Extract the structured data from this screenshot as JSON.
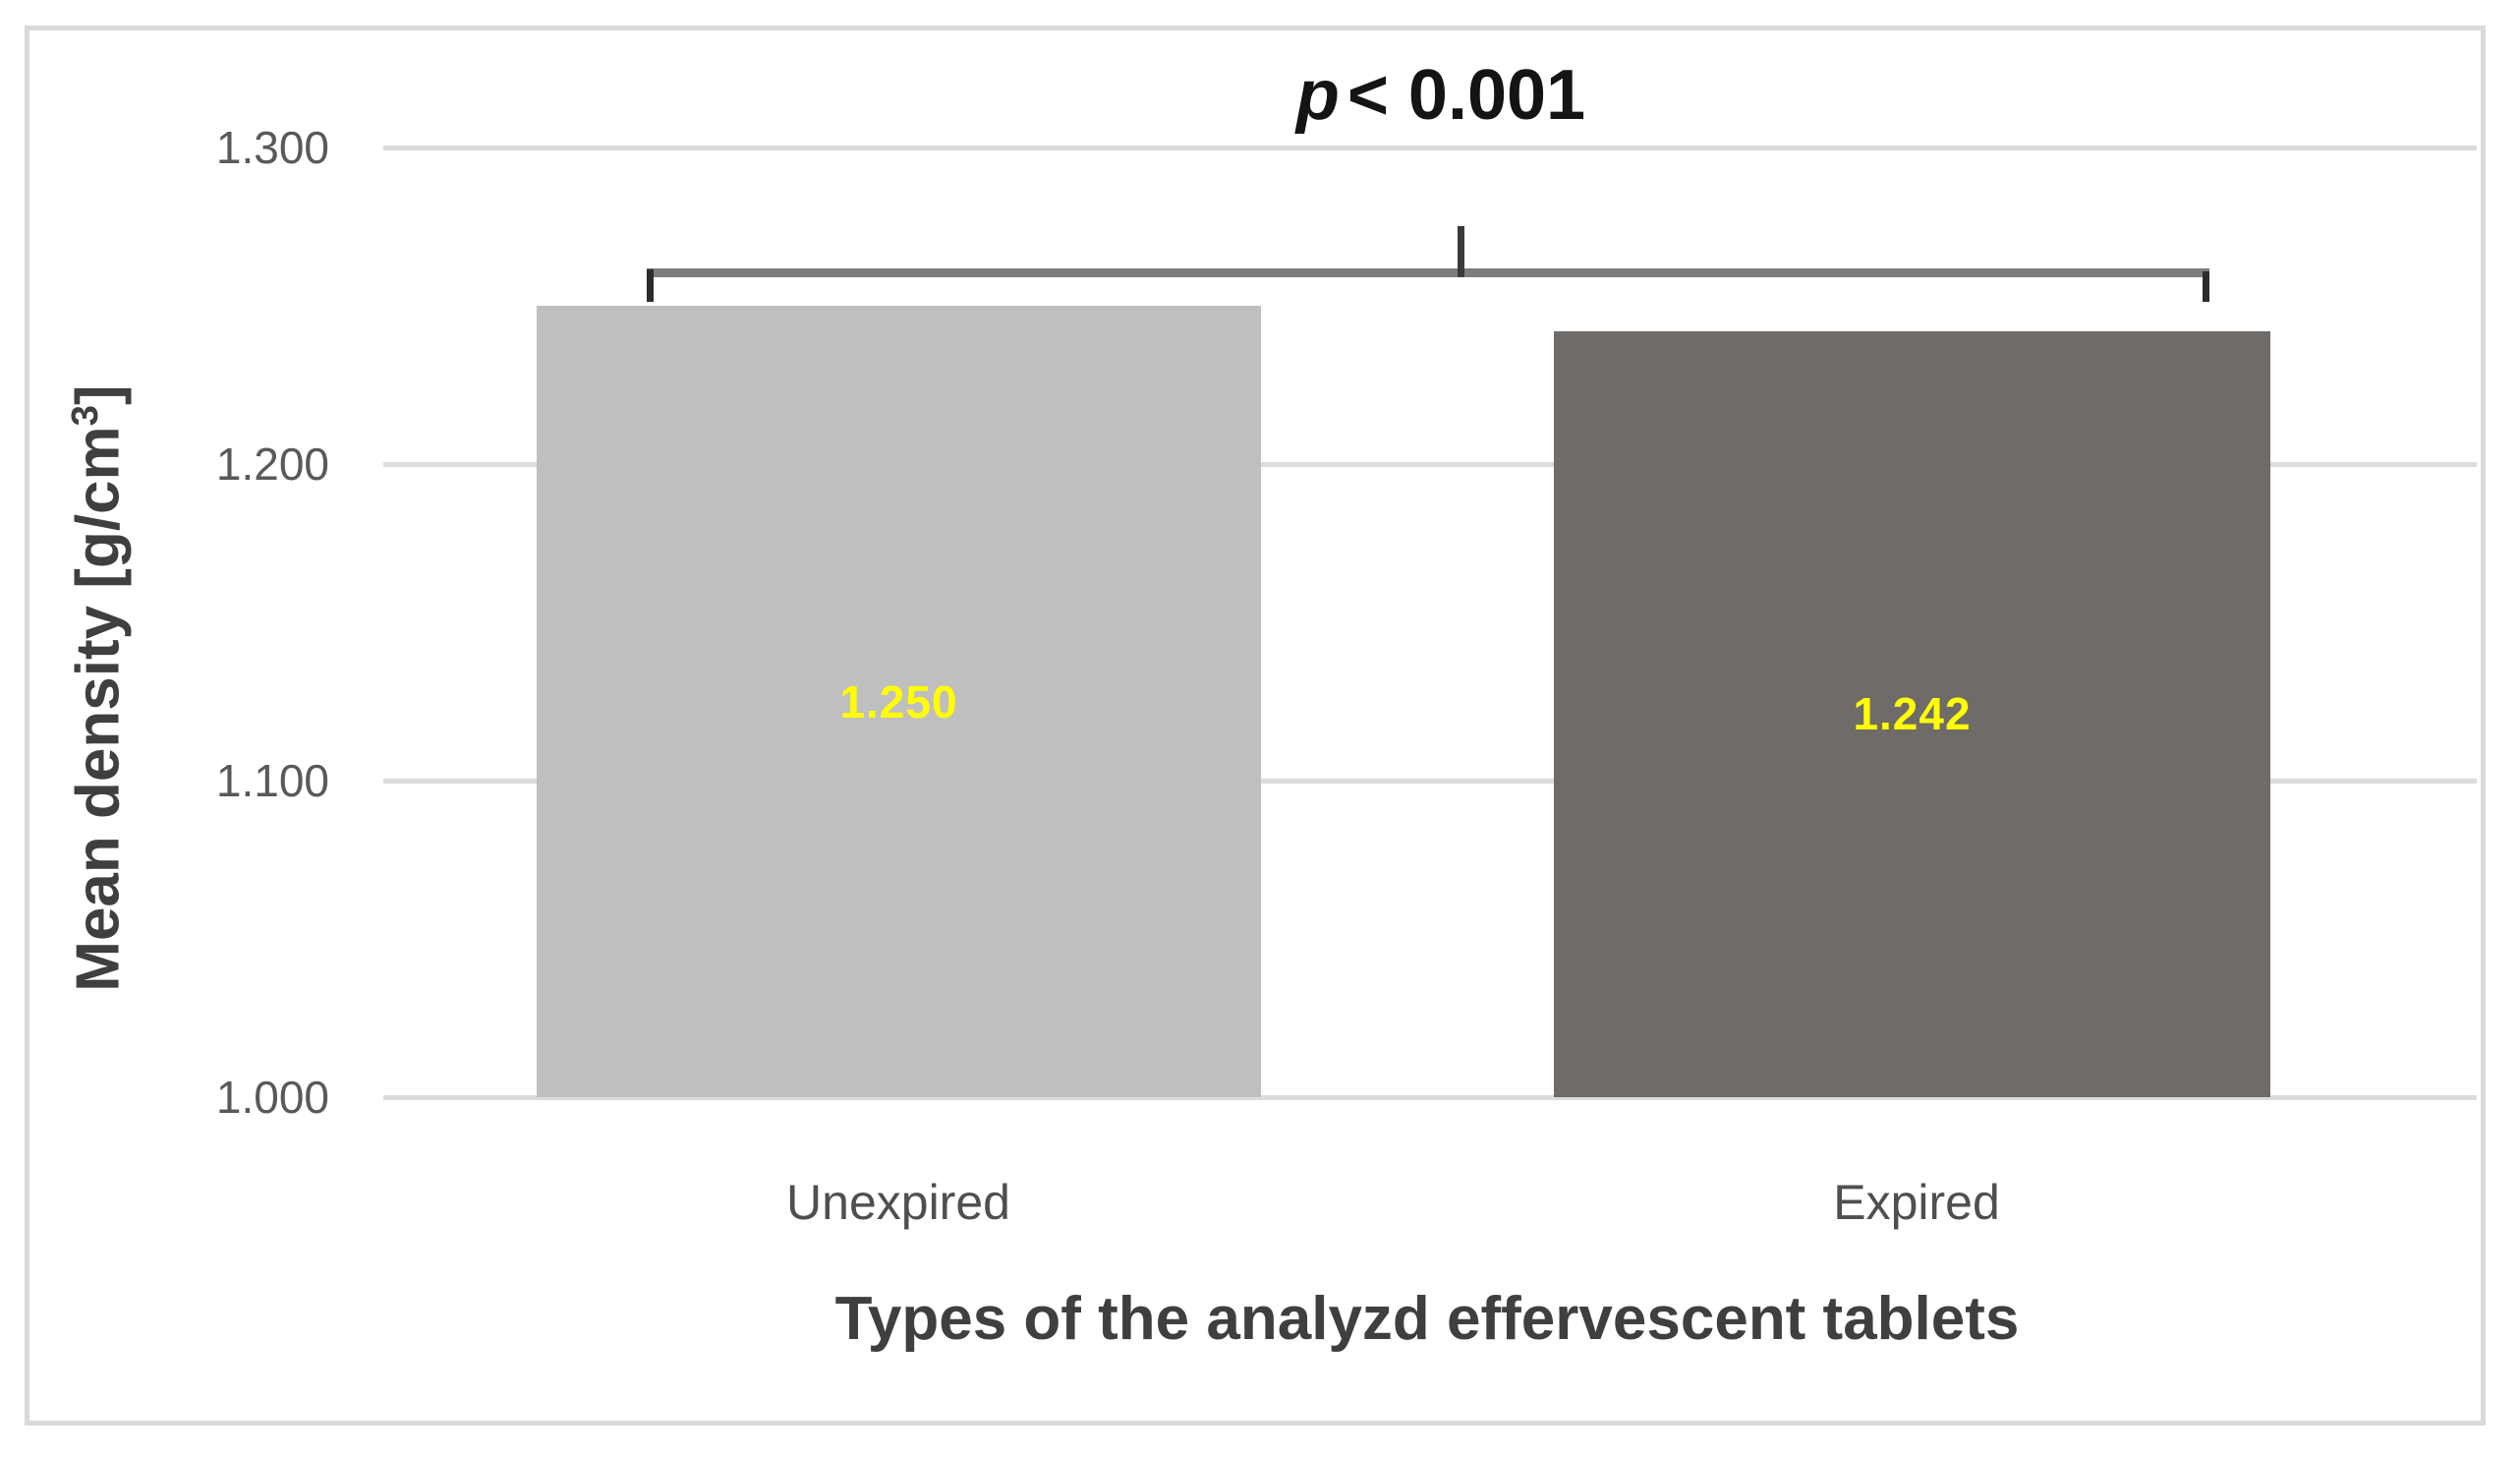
{
  "chart_data": {
    "type": "bar",
    "categories": [
      "Unexpired",
      "Expired"
    ],
    "values": [
      1.25,
      1.242
    ],
    "value_labels": [
      "1.250",
      "1.242"
    ],
    "bar_colors": [
      "#bfbfbf",
      "#6e6b68"
    ],
    "data_label_color": "#ffff00",
    "xlabel": "Types of the analyzd effervescent tablets",
    "ylabel_main": "Mean density [g/cm",
    "ylabel_sup": "3",
    "ylabel_end": "]",
    "ylim": [
      1.0,
      1.3
    ],
    "ytick_labels_top_to_bottom": [
      "1.300",
      "1.200",
      "1.100",
      "1.000"
    ],
    "ytick_step": 0.1,
    "grid": true,
    "legend_position": "none",
    "annotation": {
      "variable": "p",
      "relation": "< 0.001"
    },
    "colors": {
      "gridline": "#dcdcdc",
      "frame_border": "#d9d9d9",
      "tick_text": "#595959",
      "category_text": "#4f4f4f",
      "title_text": "#3f3f3f",
      "annotation_text": "#141414",
      "bracket_bar": "#7d7d7d",
      "bracket_tick": "#2b2b2b"
    }
  }
}
